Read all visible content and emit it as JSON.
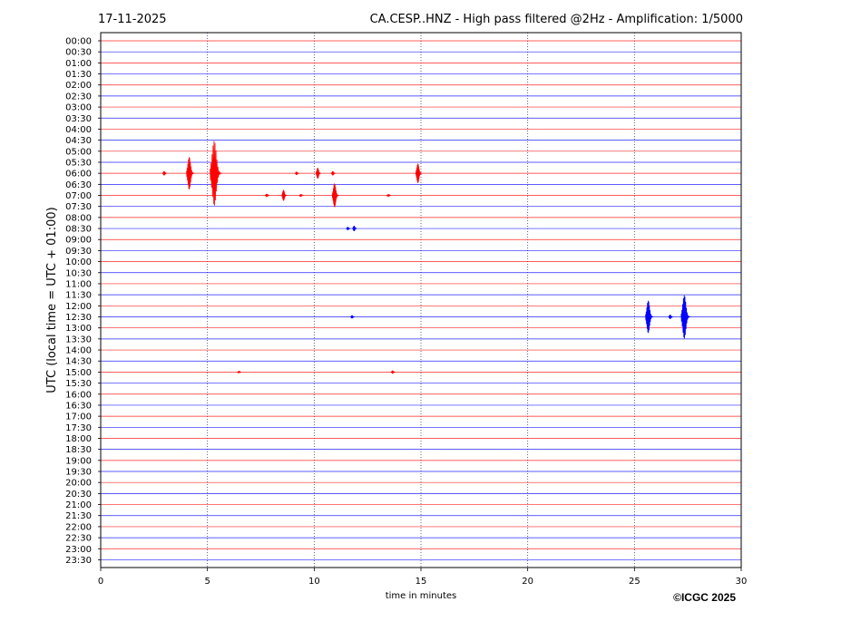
{
  "chart_data": {
    "type": "line",
    "date": "17-11-2025",
    "title": "CA.CESP..HNZ - High pass filtered @2Hz - Amplification: 1/5000",
    "xlabel": "time in minutes",
    "ylabel": "UTC (local time = UTC + 01:00)",
    "xlim": [
      0,
      30
    ],
    "x_ticks": [
      0,
      5,
      10,
      15,
      20,
      25,
      30
    ],
    "vertical_grid": true,
    "row_labels": [
      "00:00",
      "00:30",
      "01:00",
      "01:30",
      "02:00",
      "02:30",
      "03:00",
      "03:30",
      "04:00",
      "04:30",
      "05:00",
      "05:30",
      "06:00",
      "06:30",
      "07:00",
      "07:30",
      "08:00",
      "08:30",
      "09:00",
      "09:30",
      "10:00",
      "10:30",
      "11:00",
      "11:30",
      "12:00",
      "12:30",
      "13:00",
      "13:30",
      "14:00",
      "14:30",
      "15:00",
      "15:30",
      "16:00",
      "16:30",
      "17:00",
      "17:30",
      "18:00",
      "18:30",
      "19:00",
      "19:30",
      "20:00",
      "20:30",
      "21:00",
      "21:30",
      "22:00",
      "22:30",
      "23:00",
      "23:30"
    ],
    "row_colors": [
      "#ff0000",
      "#0000ff"
    ],
    "events": [
      {
        "row": "06:00",
        "minute": 3.0,
        "amplitude": 0.2
      },
      {
        "row": "06:00",
        "minute": 4.2,
        "amplitude": 1.5
      },
      {
        "row": "06:00",
        "minute": 5.4,
        "amplitude": 3.0
      },
      {
        "row": "06:00",
        "minute": 9.2,
        "amplitude": 0.15
      },
      {
        "row": "06:00",
        "minute": 10.2,
        "amplitude": 0.5
      },
      {
        "row": "06:00",
        "minute": 10.9,
        "amplitude": 0.2
      },
      {
        "row": "06:00",
        "minute": 14.9,
        "amplitude": 0.9
      },
      {
        "row": "07:00",
        "minute": 7.8,
        "amplitude": 0.15
      },
      {
        "row": "07:00",
        "minute": 8.6,
        "amplitude": 0.5
      },
      {
        "row": "07:00",
        "minute": 9.4,
        "amplitude": 0.12
      },
      {
        "row": "07:00",
        "minute": 11.0,
        "amplitude": 1.1
      },
      {
        "row": "07:00",
        "minute": 13.5,
        "amplitude": 0.12
      },
      {
        "row": "08:30",
        "minute": 11.6,
        "amplitude": 0.15
      },
      {
        "row": "08:30",
        "minute": 11.9,
        "amplitude": 0.25
      },
      {
        "row": "12:30",
        "minute": 25.7,
        "amplitude": 1.5
      },
      {
        "row": "12:30",
        "minute": 26.7,
        "amplitude": 0.2
      },
      {
        "row": "12:30",
        "minute": 27.4,
        "amplitude": 2.0
      },
      {
        "row": "12:30",
        "minute": 11.8,
        "amplitude": 0.15
      },
      {
        "row": "15:00",
        "minute": 13.7,
        "amplitude": 0.15
      },
      {
        "row": "15:00",
        "minute": 6.5,
        "amplitude": 0.1
      }
    ]
  },
  "copyright": "©ICGC 2025"
}
